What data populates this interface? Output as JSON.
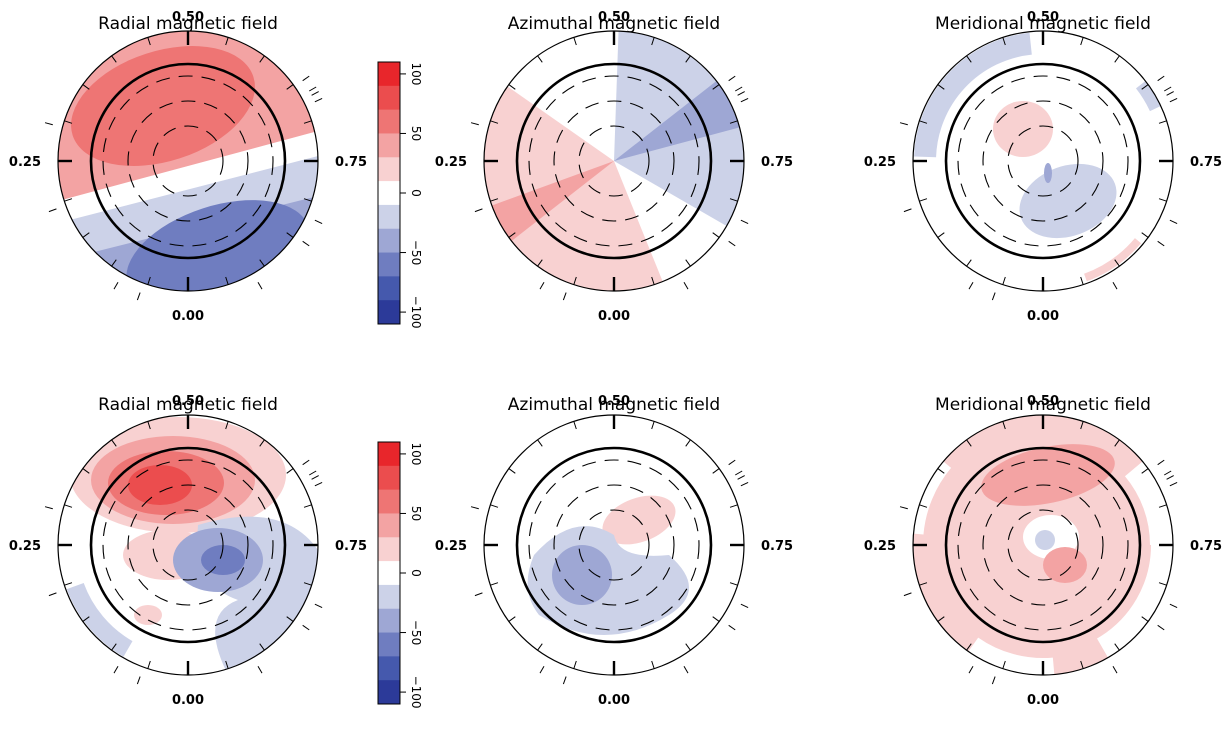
{
  "colorbar": {
    "ticks": [
      "100",
      "50",
      "0",
      "−50",
      "−100"
    ],
    "colors": [
      "#e8262b",
      "#eb4d4e",
      "#ee7574",
      "#f3a3a3",
      "#f8d1d1",
      "#ffffff",
      "#ccd2e8",
      "#9ea7d4",
      "#6f7dc0",
      "#4559ad",
      "#2c3a99"
    ]
  },
  "phase_labels": {
    "top": "0.50",
    "left": "0.25",
    "right": "0.75",
    "bottom": "0.00"
  },
  "chart_data": [
    {
      "type": "heatmap",
      "projection": "polar",
      "title": "Radial magnetic field",
      "row": 1,
      "col": 1,
      "colorscale_range": [
        -100,
        100
      ],
      "regions": [
        {
          "value": 55,
          "shape": "band",
          "angle_deg": 155,
          "offset": 0.45
        },
        {
          "value": -50,
          "shape": "band",
          "angle_deg": 155,
          "offset": -0.5
        }
      ]
    },
    {
      "type": "heatmap",
      "projection": "polar",
      "title": "Azimuthal magnetic field",
      "row": 1,
      "col": 2,
      "regions": [
        {
          "value": 25,
          "shape": "sector",
          "from_deg": 200,
          "to_deg": 330
        },
        {
          "value": -25,
          "shape": "sector",
          "from_deg": 10,
          "to_deg": 110
        },
        {
          "value": -45,
          "shape": "sector",
          "from_deg": 20,
          "to_deg": 45
        }
      ]
    },
    {
      "type": "heatmap",
      "projection": "polar",
      "title": "Meridional magnetic field",
      "row": 1,
      "col": 3,
      "regions": [
        {
          "value": 20,
          "shape": "spot"
        },
        {
          "value": -20,
          "shape": "spot"
        },
        {
          "value": -20,
          "shape": "arc"
        },
        {
          "value": 20,
          "shape": "arc"
        }
      ]
    },
    {
      "type": "heatmap",
      "projection": "polar",
      "title": "Radial magnetic field",
      "row": 2,
      "col": 1,
      "regions": [
        {
          "value": 90,
          "shape": "spot"
        },
        {
          "value": -55,
          "shape": "spot"
        },
        {
          "value": 20,
          "shape": "spot"
        }
      ]
    },
    {
      "type": "heatmap",
      "projection": "polar",
      "title": "Azimuthal magnetic field",
      "row": 2,
      "col": 2,
      "regions": [
        {
          "value": 20,
          "shape": "spot"
        },
        {
          "value": -40,
          "shape": "spot"
        }
      ]
    },
    {
      "type": "heatmap",
      "projection": "polar",
      "title": "Meridional magnetic field",
      "row": 2,
      "col": 3,
      "regions": [
        {
          "value": 45,
          "shape": "spot"
        },
        {
          "value": 45,
          "shape": "spot"
        },
        {
          "value": -20,
          "shape": "spot"
        },
        {
          "value": 20,
          "shape": "spot"
        }
      ]
    }
  ]
}
